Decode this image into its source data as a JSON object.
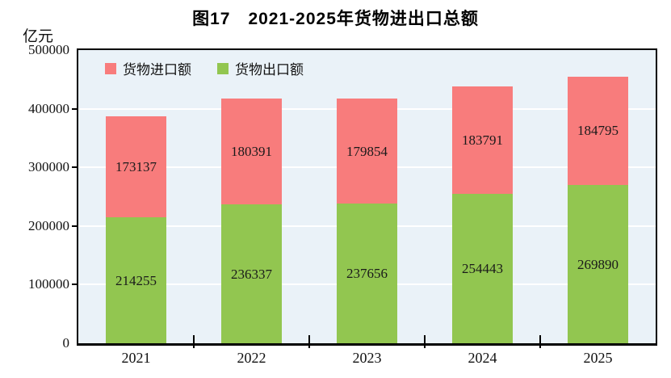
{
  "figure": {
    "title": "图17　2021-2025年货物进出口总额",
    "y_unit_label": "亿元"
  },
  "colors": {
    "import_red": "#F87C7C",
    "export_green": "#92C650",
    "plot_background": "#EAF2F8",
    "gridline": "#FFFFFF",
    "axis": "#000000"
  },
  "chart_data": {
    "type": "bar",
    "stacked": true,
    "title": "图17　2021-2025年货物进出口总额",
    "ylabel": "亿元",
    "xlabel": "",
    "categories": [
      "2021",
      "2022",
      "2023",
      "2024",
      "2025"
    ],
    "series": [
      {
        "name": "货物出口额",
        "color": "#92C650",
        "values": [
          214255,
          236337,
          237656,
          254443,
          269890
        ]
      },
      {
        "name": "货物进口额",
        "color": "#F87C7C",
        "values": [
          173137,
          180391,
          179854,
          183791,
          184795
        ]
      }
    ],
    "legend": [
      {
        "label": "货物进口额",
        "color": "#F87C7C"
      },
      {
        "label": "货物出口额",
        "color": "#92C650"
      }
    ],
    "legend_position": "top-left-inside",
    "ylim": [
      0,
      500000
    ],
    "ytick_interval": 100000,
    "ytick_labels": [
      "0",
      "100000",
      "200000",
      "300000",
      "400000",
      "500000"
    ],
    "grid": true,
    "gridline_color": "#FFFFFF",
    "plot_background": "#EAF2F8"
  }
}
